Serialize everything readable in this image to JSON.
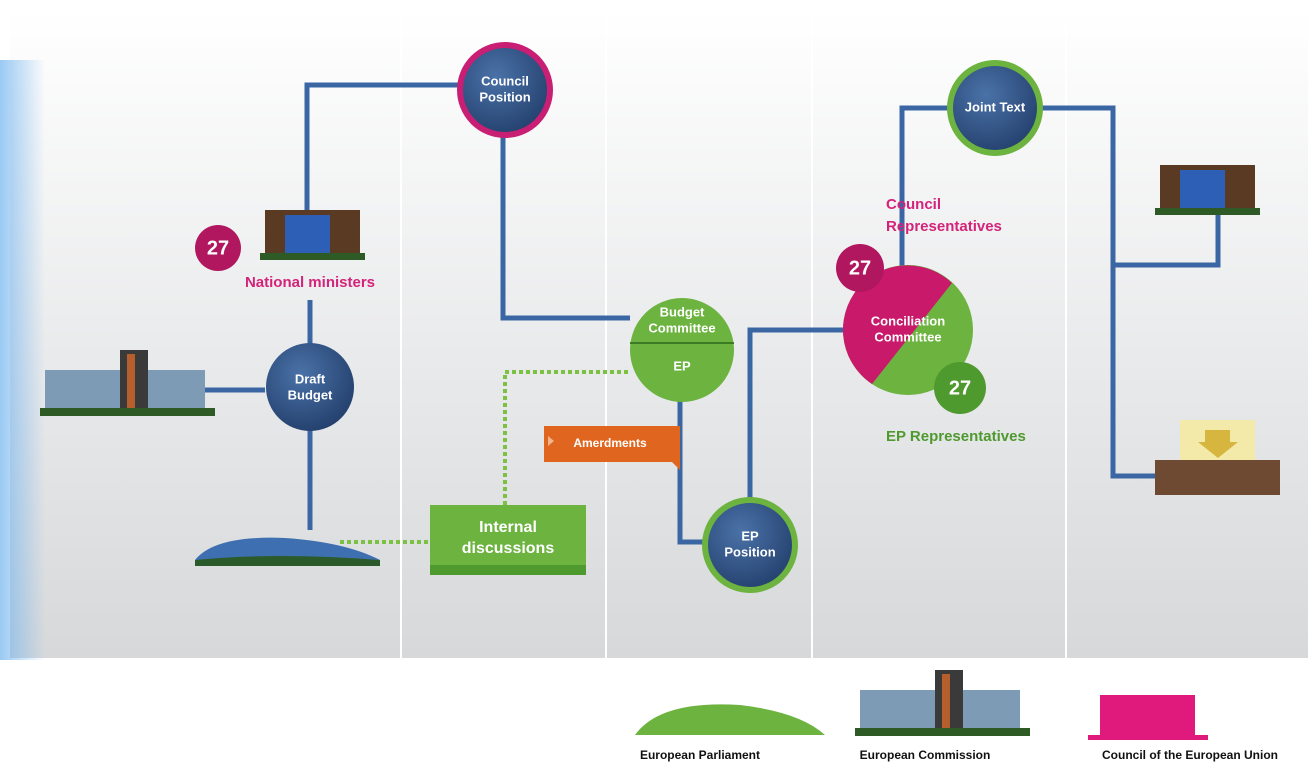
{
  "nodes": [
    {
      "label": [
        "Council",
        "Position"
      ]
    },
    {
      "label": [
        "Draft",
        "Budget"
      ]
    },
    {
      "label": [
        "Budget",
        "Committee"
      ],
      "sublabel": "EP"
    },
    {
      "label": [
        "EP",
        "Position"
      ]
    },
    {
      "label": [
        "Joint Text"
      ]
    },
    {
      "label": [
        "Conciliation",
        "Committee"
      ]
    }
  ],
  "badges": [
    27,
    27,
    27
  ],
  "captions": [
    [
      "National ministers"
    ],
    [
      "Council",
      "Representatives"
    ],
    [
      "EP Representatives"
    ]
  ],
  "boxes": [
    {
      "label": [
        "Amerdments"
      ]
    },
    {
      "label": [
        "Internal",
        "discussions"
      ]
    }
  ],
  "legend": [
    "European Parliament",
    "European Commission",
    "Council of the European Union"
  ]
}
